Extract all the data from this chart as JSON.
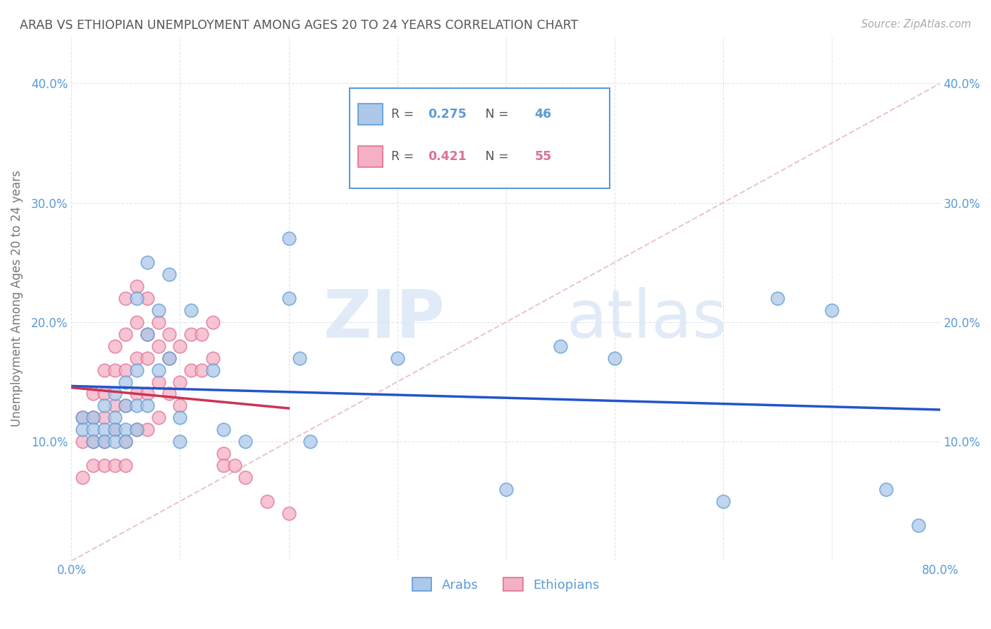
{
  "title": "ARAB VS ETHIOPIAN UNEMPLOYMENT AMONG AGES 20 TO 24 YEARS CORRELATION CHART",
  "source": "Source: ZipAtlas.com",
  "ylabel": "Unemployment Among Ages 20 to 24 years",
  "xlim": [
    0.0,
    0.8
  ],
  "ylim": [
    0.0,
    0.44
  ],
  "xticks": [
    0.0,
    0.1,
    0.2,
    0.3,
    0.4,
    0.5,
    0.6,
    0.7,
    0.8
  ],
  "xticklabels": [
    "0.0%",
    "",
    "",
    "",
    "",
    "",
    "",
    "",
    "80.0%"
  ],
  "yticks": [
    0.0,
    0.1,
    0.2,
    0.3,
    0.4
  ],
  "yticklabels": [
    "",
    "10.0%",
    "20.0%",
    "30.0%",
    "40.0%"
  ],
  "arab_color": "#adc8e8",
  "arab_edge_color": "#5b9bd5",
  "ethiopian_color": "#f4b0c5",
  "ethiopian_edge_color": "#e07090",
  "arab_line_color": "#2255cc",
  "ethiopian_line_color": "#cc3355",
  "diag_line_color": "#e8c0c8",
  "R_arab": 0.275,
  "N_arab": 46,
  "R_ethiopian": 0.421,
  "N_ethiopian": 55,
  "title_color": "#555555",
  "axis_color": "#5b9bd5",
  "grid_color": "#dde5f0",
  "watermark_zip": "ZIP",
  "watermark_atlas": "atlas",
  "legend_arab": "Arabs",
  "legend_ethiopian": "Ethiopians",
  "arab_x": [
    0.01,
    0.01,
    0.02,
    0.02,
    0.02,
    0.03,
    0.03,
    0.03,
    0.04,
    0.04,
    0.04,
    0.04,
    0.05,
    0.05,
    0.05,
    0.05,
    0.06,
    0.06,
    0.06,
    0.06,
    0.07,
    0.07,
    0.07,
    0.08,
    0.08,
    0.09,
    0.09,
    0.1,
    0.1,
    0.11,
    0.13,
    0.14,
    0.16,
    0.2,
    0.2,
    0.21,
    0.22,
    0.3,
    0.4,
    0.45,
    0.5,
    0.6,
    0.65,
    0.7,
    0.75,
    0.78
  ],
  "arab_y": [
    0.12,
    0.11,
    0.12,
    0.11,
    0.1,
    0.13,
    0.11,
    0.1,
    0.14,
    0.12,
    0.11,
    0.1,
    0.15,
    0.13,
    0.11,
    0.1,
    0.22,
    0.16,
    0.13,
    0.11,
    0.25,
    0.19,
    0.13,
    0.21,
    0.16,
    0.24,
    0.17,
    0.12,
    0.1,
    0.21,
    0.16,
    0.11,
    0.1,
    0.27,
    0.22,
    0.17,
    0.1,
    0.17,
    0.06,
    0.18,
    0.17,
    0.05,
    0.22,
    0.21,
    0.06,
    0.03
  ],
  "ethiopian_x": [
    0.01,
    0.01,
    0.01,
    0.02,
    0.02,
    0.02,
    0.02,
    0.03,
    0.03,
    0.03,
    0.03,
    0.03,
    0.04,
    0.04,
    0.04,
    0.04,
    0.04,
    0.05,
    0.05,
    0.05,
    0.05,
    0.05,
    0.05,
    0.06,
    0.06,
    0.06,
    0.06,
    0.06,
    0.07,
    0.07,
    0.07,
    0.07,
    0.07,
    0.08,
    0.08,
    0.08,
    0.08,
    0.09,
    0.09,
    0.09,
    0.1,
    0.1,
    0.1,
    0.11,
    0.11,
    0.12,
    0.12,
    0.13,
    0.13,
    0.14,
    0.14,
    0.15,
    0.16,
    0.18,
    0.2
  ],
  "ethiopian_y": [
    0.12,
    0.1,
    0.07,
    0.14,
    0.12,
    0.1,
    0.08,
    0.16,
    0.14,
    0.12,
    0.1,
    0.08,
    0.18,
    0.16,
    0.13,
    0.11,
    0.08,
    0.22,
    0.19,
    0.16,
    0.13,
    0.1,
    0.08,
    0.23,
    0.2,
    0.17,
    0.14,
    0.11,
    0.22,
    0.19,
    0.17,
    0.14,
    0.11,
    0.2,
    0.18,
    0.15,
    0.12,
    0.19,
    0.17,
    0.14,
    0.18,
    0.15,
    0.13,
    0.19,
    0.16,
    0.19,
    0.16,
    0.2,
    0.17,
    0.09,
    0.08,
    0.08,
    0.07,
    0.05,
    0.04
  ]
}
